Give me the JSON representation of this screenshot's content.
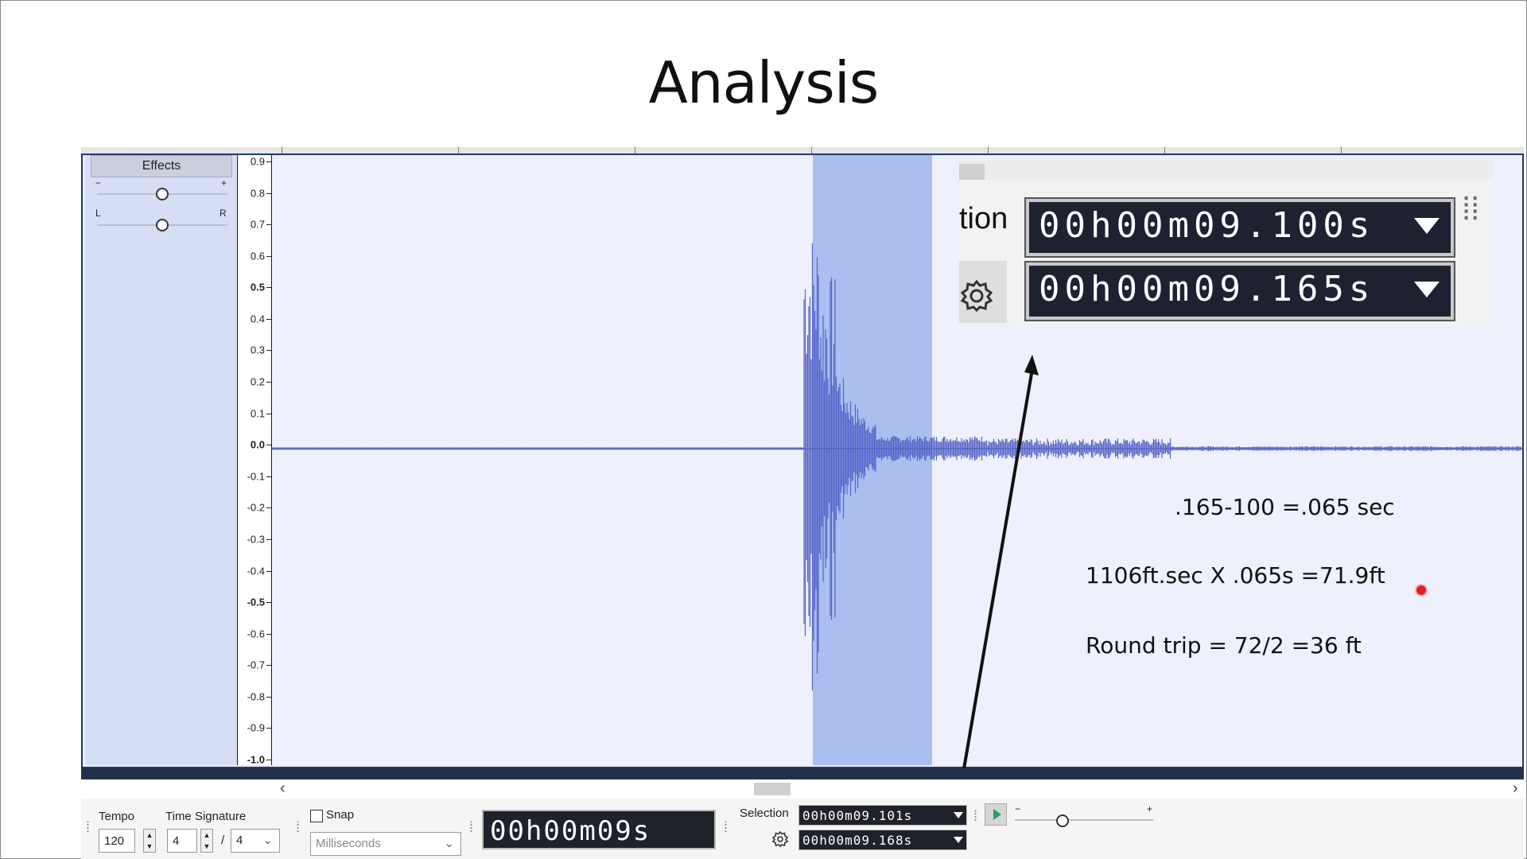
{
  "slide": {
    "title": "Analysis"
  },
  "track_panel": {
    "effects_label": "Effects",
    "gain_minus": "−",
    "gain_plus": "+",
    "pan_left": "L",
    "pan_right": "R"
  },
  "amplitude_axis": {
    "labels": [
      "0.9",
      "0.8",
      "0.7",
      "0.6",
      "0.5",
      "0.4",
      "0.3",
      "0.2",
      "0.1",
      "0.0",
      "-0.1",
      "-0.2",
      "-0.3",
      "-0.4",
      "-0.5",
      "-0.6",
      "-0.7",
      "-0.8",
      "-0.9",
      "-1.0"
    ]
  },
  "inset": {
    "label_fragment": "tion",
    "start_time": "00h00m09.100s",
    "end_time": "00h00m09.165s"
  },
  "annotations": {
    "line1": ".165-100 =.065 sec",
    "line2": "1106ft.sec X .065s  =71.9ft",
    "line3": "Round trip = 72/2 =36 ft"
  },
  "toolbar": {
    "tempo_label": "Tempo",
    "tempo_value": "120",
    "time_sig_label": "Time Signature",
    "time_sig_num": "4",
    "time_sig_sep": "/",
    "time_sig_den": "4",
    "snap_label": "Snap",
    "snap_unit": "Milliseconds",
    "playhead_time": "00h00m09s",
    "selection_label": "Selection",
    "selection_start": "00h00m09.101s",
    "selection_end": "00h00m09.168s"
  },
  "colors": {
    "selection": "#aabfef",
    "waveform": "#5564c8",
    "track_frame": "#1f3a6e"
  }
}
